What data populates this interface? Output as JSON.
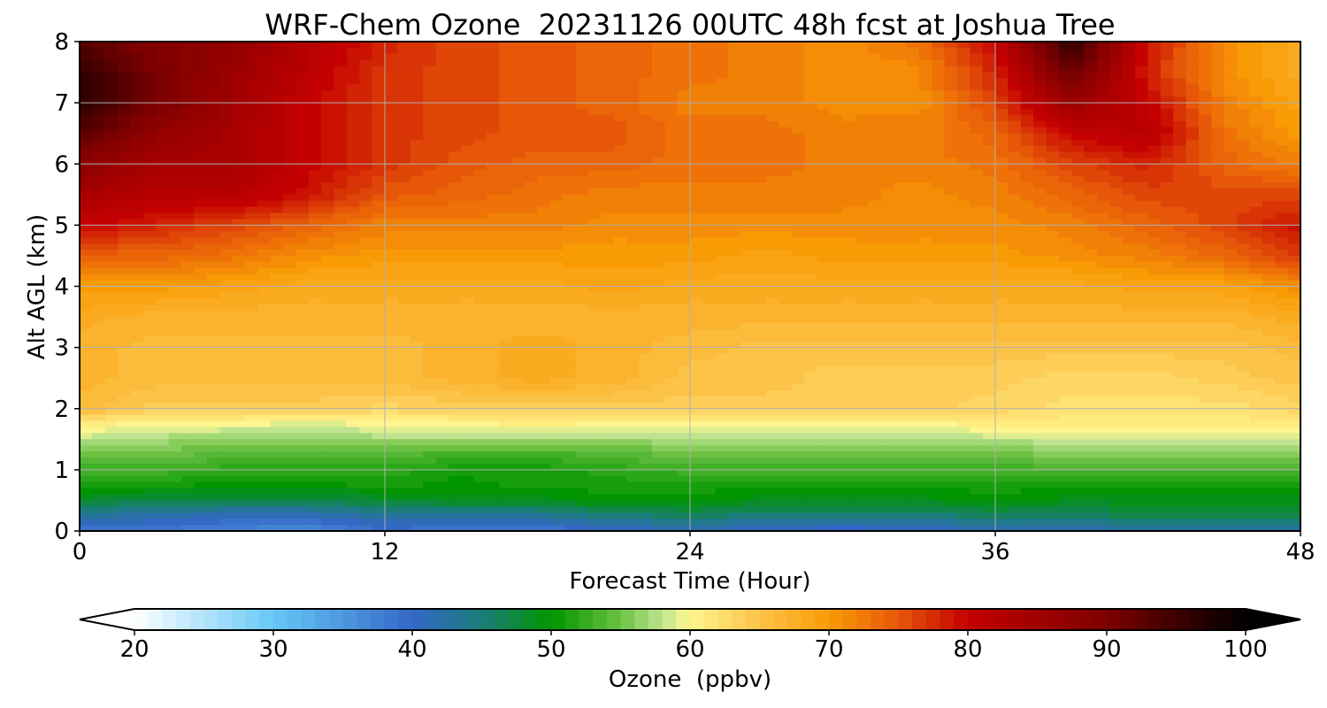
{
  "chart_data": {
    "type": "heatmap",
    "title": "WRF-Chem Ozone  20231126 00UTC 48h fcst at Joshua Tree",
    "xlabel": "Forecast Time (Hour)",
    "ylabel": "Alt AGL (km)",
    "xlim": [
      0,
      48
    ],
    "ylim": [
      0,
      8
    ],
    "xticks": [
      "0",
      "12",
      "24",
      "36",
      "48"
    ],
    "yticks": [
      "0",
      "1",
      "2",
      "3",
      "4",
      "5",
      "6",
      "7",
      "8"
    ],
    "grid": true,
    "x_hours": [
      0,
      3,
      6,
      9,
      12,
      15,
      18,
      21,
      24,
      27,
      30,
      33,
      36,
      39,
      42,
      45,
      48
    ],
    "z_km": [
      0,
      0.25,
      0.5,
      0.75,
      1.0,
      1.25,
      1.5,
      1.75,
      2.0,
      2.5,
      3.0,
      3.5,
      4.0,
      4.5,
      5.0,
      5.5,
      6.0,
      6.5,
      7.0,
      7.5,
      8.0
    ],
    "ozone_ppbv": [
      [
        38,
        38,
        37,
        36,
        39,
        38,
        38,
        40,
        41,
        40,
        39,
        40,
        41,
        41,
        42,
        42,
        42
      ],
      [
        43,
        42,
        41,
        41,
        43,
        43,
        43,
        45,
        46,
        45,
        45,
        45,
        46,
        46,
        47,
        47,
        47
      ],
      [
        48,
        47,
        47,
        47,
        48,
        49,
        49,
        50,
        50,
        49,
        49,
        49,
        50,
        49,
        49,
        49,
        49
      ],
      [
        51,
        51,
        50,
        50,
        51,
        50,
        51,
        51,
        51,
        51,
        51,
        51,
        51,
        51,
        51,
        51,
        51
      ],
      [
        53,
        53,
        52,
        52,
        52,
        51,
        51,
        52,
        53,
        53,
        53,
        53,
        53,
        53,
        54,
        54,
        54
      ],
      [
        55,
        55,
        54,
        54,
        54,
        53,
        53,
        54,
        55,
        55,
        55,
        55,
        55,
        56,
        56,
        56,
        56
      ],
      [
        58,
        57,
        56,
        56,
        57,
        57,
        57,
        57,
        57,
        57,
        57,
        57,
        58,
        58,
        58,
        58,
        58
      ],
      [
        61,
        60,
        60,
        59,
        60,
        60,
        61,
        60,
        60,
        60,
        60,
        60,
        61,
        61,
        61,
        61,
        61
      ],
      [
        66,
        64,
        64,
        64,
        63,
        64,
        64,
        64,
        64,
        64,
        64,
        64,
        63,
        62,
        62,
        62,
        63
      ],
      [
        67,
        66,
        66,
        66,
        66,
        67,
        68,
        67,
        65,
        65,
        64,
        64,
        64,
        63,
        63,
        64,
        65
      ],
      [
        67,
        66,
        66,
        66,
        66,
        67,
        68,
        67,
        66,
        65,
        65,
        65,
        65,
        65,
        65,
        65,
        66
      ],
      [
        68,
        67,
        67,
        67,
        67,
        67,
        67,
        67,
        67,
        67,
        67,
        67,
        67,
        67,
        67,
        67,
        68
      ],
      [
        70,
        70,
        69,
        68,
        68,
        68,
        68,
        69,
        68,
        68,
        68,
        68,
        68,
        68,
        69,
        69,
        71
      ],
      [
        74,
        74,
        73,
        71,
        70,
        70,
        70,
        70,
        70,
        69,
        70,
        70,
        70,
        71,
        72,
        74,
        77
      ],
      [
        80,
        78,
        76,
        74,
        72,
        72,
        72,
        71,
        71,
        71,
        71,
        71,
        71,
        72,
        74,
        76,
        79
      ],
      [
        84,
        82,
        82,
        79,
        75,
        74,
        73,
        72,
        72,
        72,
        72,
        71,
        72,
        74,
        76,
        76,
        76
      ],
      [
        88,
        84,
        84,
        80,
        77,
        75,
        74,
        74,
        73,
        73,
        72,
        72,
        73,
        76,
        78,
        74,
        72
      ],
      [
        93,
        87,
        84,
        80,
        77,
        76,
        75,
        75,
        73,
        73,
        72,
        72,
        74,
        80,
        82,
        73,
        70
      ],
      [
        97,
        90,
        85,
        80,
        77,
        76,
        75,
        74,
        72,
        72,
        71,
        71,
        76,
        86,
        80,
        72,
        69
      ],
      [
        96,
        90,
        86,
        81,
        77,
        76,
        75,
        74,
        73,
        72,
        71,
        71,
        78,
        92,
        78,
        71,
        68
      ],
      [
        93,
        89,
        87,
        82,
        78,
        76,
        75,
        74,
        73,
        72,
        71,
        73,
        80,
        97,
        79,
        71,
        68
      ]
    ],
    "colorbar": {
      "label": "Ozone  (ppbv)",
      "ticks": [
        "20",
        "30",
        "40",
        "50",
        "60",
        "70",
        "80",
        "90",
        "100"
      ],
      "range": [
        20,
        100
      ],
      "extend": "both",
      "step": 1,
      "stops": [
        {
          "v": 20,
          "color": "#ffffff"
        },
        {
          "v": 30,
          "color": "#66c8f6"
        },
        {
          "v": 40,
          "color": "#3567c7"
        },
        {
          "v": 45,
          "color": "#1b7d7a"
        },
        {
          "v": 50,
          "color": "#009500"
        },
        {
          "v": 55,
          "color": "#6cc143"
        },
        {
          "v": 58,
          "color": "#bfe48f"
        },
        {
          "v": 60,
          "color": "#fff68f"
        },
        {
          "v": 65,
          "color": "#fcc349"
        },
        {
          "v": 70,
          "color": "#f99b05"
        },
        {
          "v": 75,
          "color": "#e65709"
        },
        {
          "v": 80,
          "color": "#c40000"
        },
        {
          "v": 90,
          "color": "#7d0000"
        },
        {
          "v": 100,
          "color": "#000000"
        }
      ]
    }
  }
}
